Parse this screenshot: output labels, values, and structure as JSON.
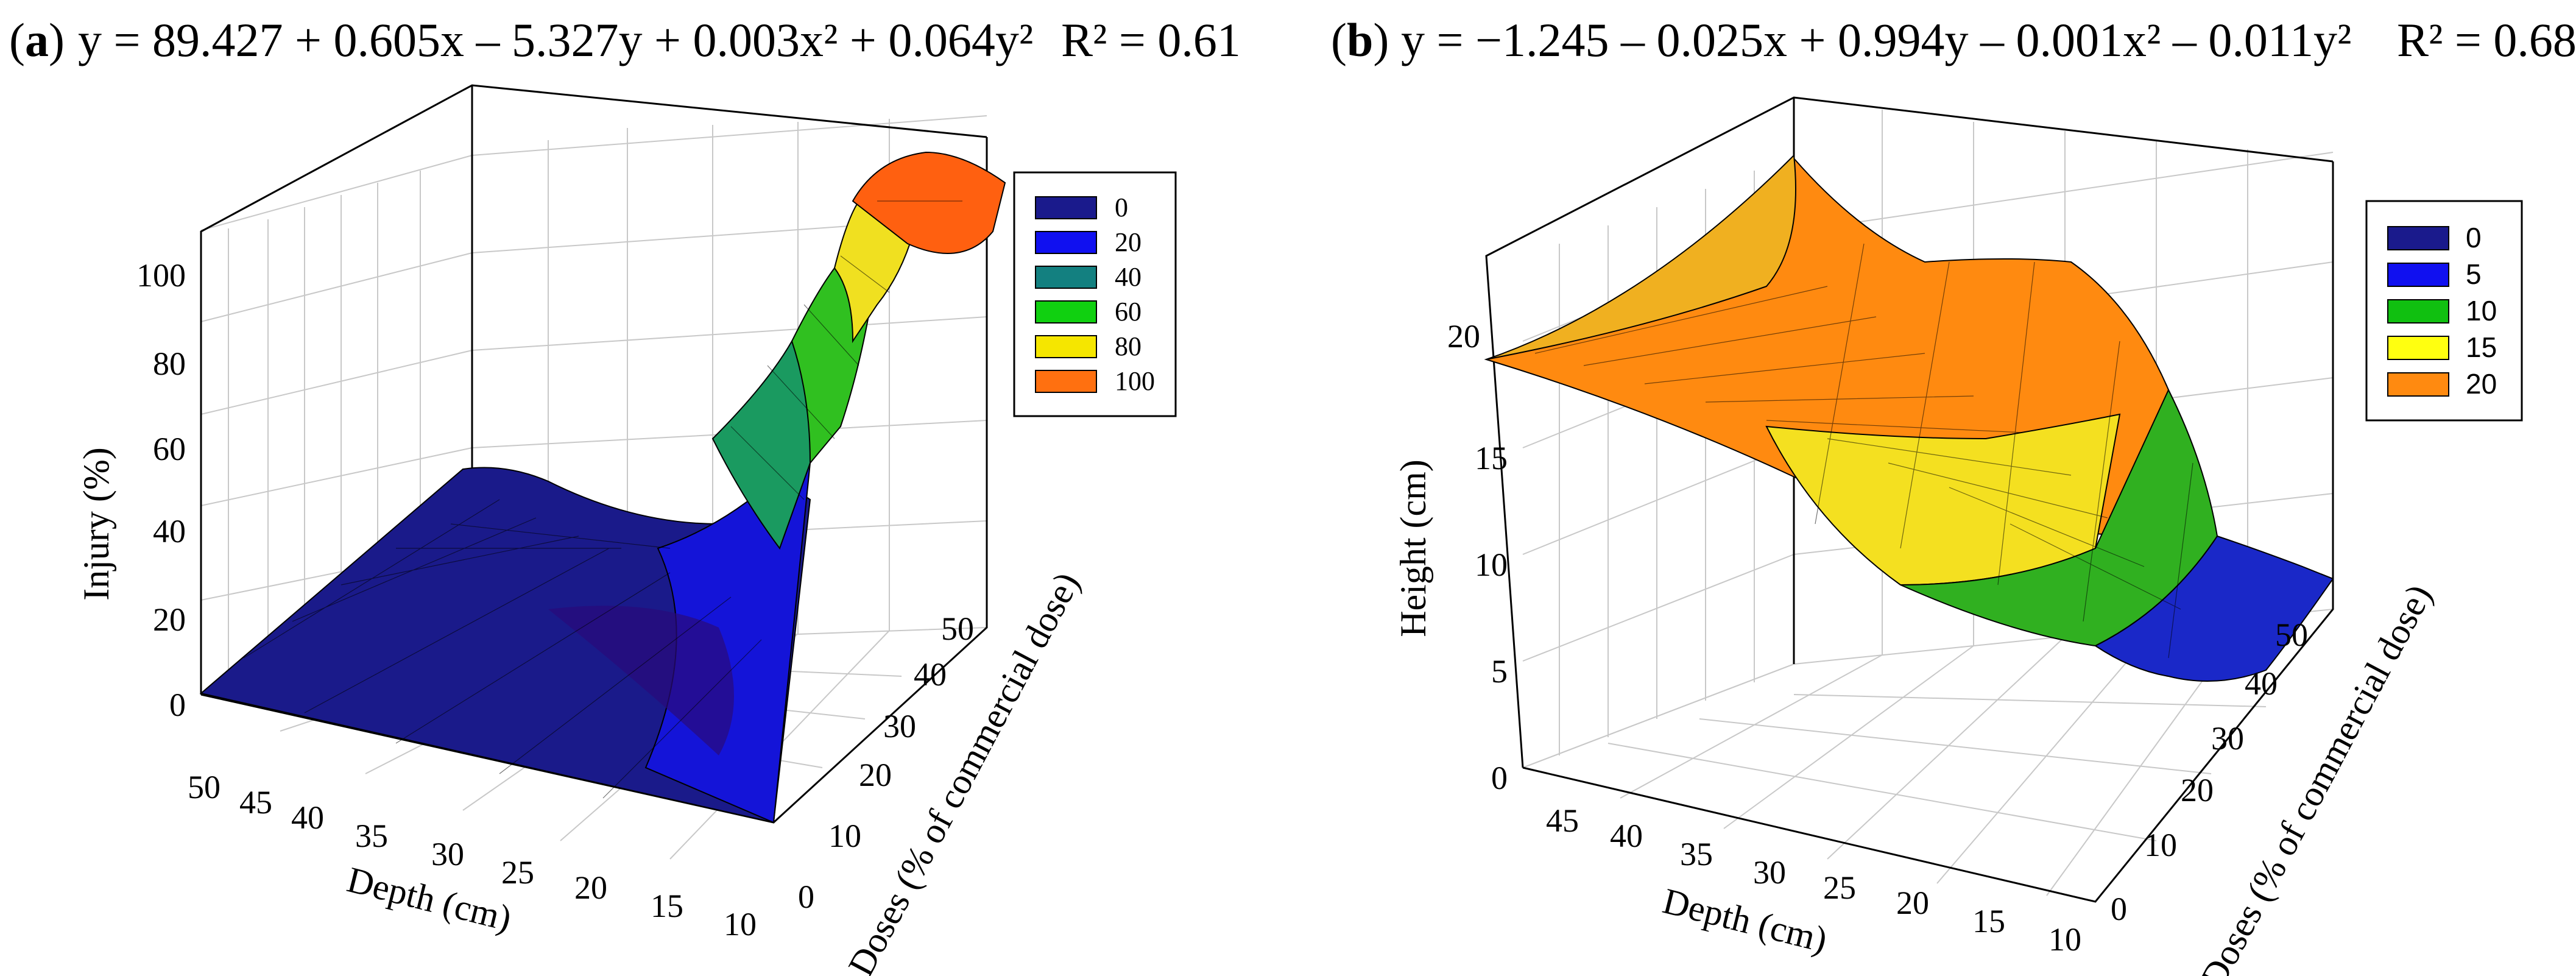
{
  "chart_data": [
    {
      "type": "surface",
      "panel_label": "a",
      "equation": "y = 89.427 + 0.605x – 5.327y + 0.003x² + 0.064y²",
      "r2_label": "R² = 0.61",
      "xlabel": "Depth (cm)",
      "ylabel": "Doses (% of commercial dose)",
      "zlabel": "Injury (%)",
      "x_ticks": [
        "50",
        "45",
        "40",
        "35",
        "30",
        "25",
        "20",
        "15",
        "10"
      ],
      "y_ticks": [
        "0",
        "10",
        "20",
        "30",
        "40",
        "50"
      ],
      "z_ticks": [
        "0",
        "20",
        "40",
        "60",
        "80",
        "100"
      ],
      "xlim": [
        10,
        50
      ],
      "ylim": [
        0,
        50
      ],
      "zlim": [
        0,
        105
      ],
      "legend": [
        {
          "label": "0",
          "color": "#1a1a8c"
        },
        {
          "label": "20",
          "color": "#1010f0"
        },
        {
          "label": "40",
          "color": "#138080"
        },
        {
          "label": "60",
          "color": "#10d010"
        },
        {
          "label": "80",
          "color": "#f5e600"
        },
        {
          "label": "100",
          "color": "#ff7010"
        }
      ],
      "surface_grid": {
        "depth": [
          50,
          40,
          30,
          20,
          10
        ],
        "dose": [
          0,
          10,
          20,
          30,
          40,
          50
        ],
        "z": [
          [
            0,
            0,
            0,
            4,
            10,
            15
          ],
          [
            0,
            0,
            0,
            4,
            8,
            10
          ],
          [
            0,
            0,
            0,
            3,
            2,
            5
          ],
          [
            0,
            0,
            0,
            6,
            15,
            30
          ],
          [
            0,
            0,
            35,
            60,
            80,
            98
          ]
        ]
      }
    },
    {
      "type": "surface",
      "panel_label": "b",
      "equation": "y = −1.245 – 0.025x + 0.994y – 0.001x² – 0.011y²",
      "r2_label": "R² = 0.68",
      "xlabel": "Depth (cm)",
      "ylabel": "Doses (% of commercial dose)",
      "zlabel": "Height (cm)",
      "x_ticks": [
        "45",
        "40",
        "35",
        "30",
        "25",
        "20",
        "15",
        "10"
      ],
      "y_ticks": [
        "0",
        "10",
        "20",
        "30",
        "40",
        "50"
      ],
      "z_ticks": [
        "0",
        "5",
        "10",
        "15",
        "20"
      ],
      "xlim": [
        10,
        50
      ],
      "ylim": [
        0,
        50
      ],
      "zlim": [
        0,
        25
      ],
      "legend": [
        {
          "label": "0",
          "color": "#1a1a8c"
        },
        {
          "label": "5",
          "color": "#1010f0"
        },
        {
          "label": "10",
          "color": "#10c010"
        },
        {
          "label": "15",
          "color": "#ffff10"
        },
        {
          "label": "20",
          "color": "#ff8a10"
        }
      ],
      "surface_grid": {
        "depth": [
          50,
          40,
          30,
          20,
          10
        ],
        "dose": [
          0,
          10,
          20,
          30,
          40,
          50
        ],
        "z": [
          [
            19,
            20,
            21,
            22,
            23,
            24
          ],
          [
            18,
            19,
            20,
            20,
            19,
            17
          ],
          [
            16,
            18,
            19,
            18,
            16,
            12
          ],
          [
            14,
            15,
            15,
            13,
            10,
            7
          ],
          [
            12,
            11,
            10,
            8,
            5,
            7
          ]
        ]
      }
    }
  ]
}
